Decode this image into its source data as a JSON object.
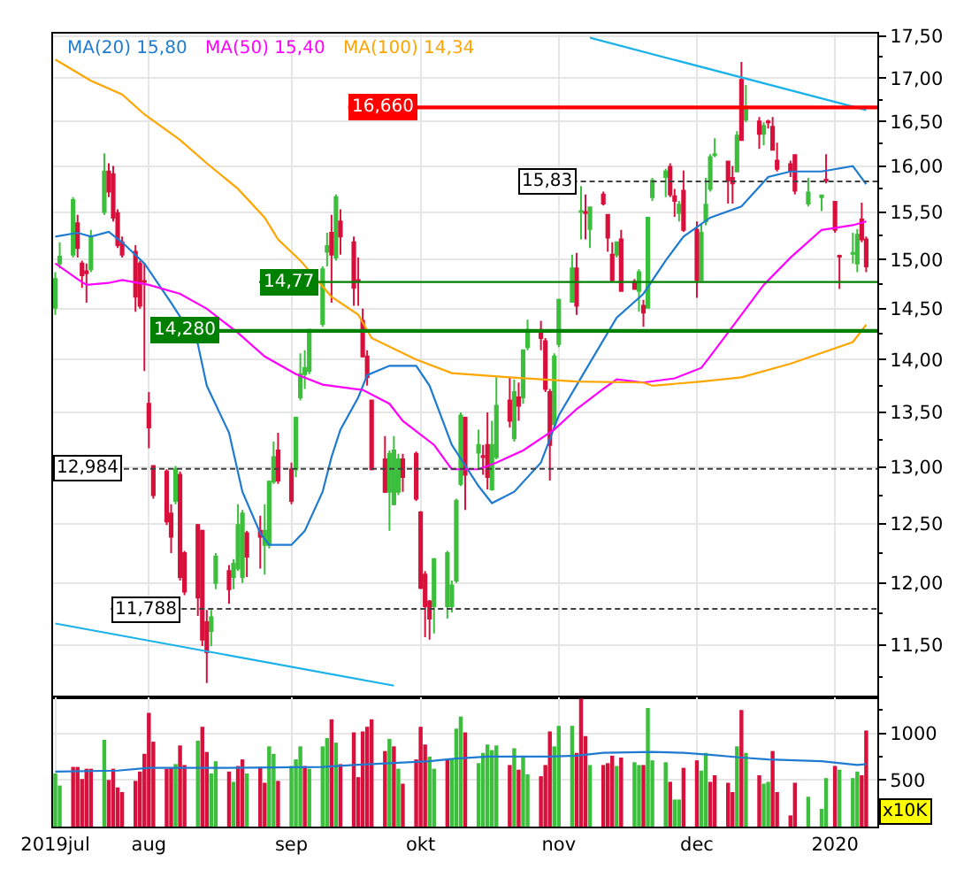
{
  "chart_data": [
    {
      "type": "candlestick",
      "x": [
        "2019-07-11",
        "2019-07-12",
        "2019-07-15",
        "2019-07-16",
        "2019-07-17",
        "2019-07-18",
        "2019-07-19",
        "2019-07-22",
        "2019-07-23",
        "2019-07-24",
        "2019-07-25",
        "2019-07-26",
        "2019-07-29",
        "2019-07-30",
        "2019-07-31",
        "2019-08-01",
        "2019-08-02",
        "2019-08-05",
        "2019-08-06",
        "2019-08-07",
        "2019-08-08",
        "2019-08-09",
        "2019-08-12",
        "2019-08-13",
        "2019-08-14",
        "2019-08-15",
        "2019-08-16",
        "2019-08-19",
        "2019-08-20",
        "2019-08-21",
        "2019-08-22",
        "2019-08-23",
        "2019-08-26",
        "2019-08-27",
        "2019-08-28",
        "2019-08-29",
        "2019-08-30",
        "2019-09-02",
        "2019-09-03",
        "2019-09-04",
        "2019-09-05",
        "2019-09-06",
        "2019-09-09",
        "2019-09-10",
        "2019-09-11",
        "2019-09-12",
        "2019-09-13",
        "2019-09-16",
        "2019-09-17",
        "2019-09-18",
        "2019-09-19",
        "2019-09-20",
        "2019-09-23",
        "2019-09-24",
        "2019-09-25",
        "2019-09-26",
        "2019-09-27",
        "2019-09-30",
        "2019-10-01",
        "2019-10-02",
        "2019-10-03",
        "2019-10-04",
        "2019-10-07",
        "2019-10-08",
        "2019-10-09",
        "2019-10-10",
        "2019-10-11",
        "2019-10-14",
        "2019-10-15",
        "2019-10-16",
        "2019-10-17",
        "2019-10-18",
        "2019-10-21",
        "2019-10-22",
        "2019-10-23",
        "2019-10-24",
        "2019-10-25",
        "2019-10-28",
        "2019-10-29",
        "2019-10-30",
        "2019-10-31",
        "2019-11-01",
        "2019-11-04",
        "2019-11-05",
        "2019-11-06",
        "2019-11-07",
        "2019-11-08",
        "2019-11-11",
        "2019-11-12",
        "2019-11-13",
        "2019-11-14",
        "2019-11-15",
        "2019-11-18",
        "2019-11-19",
        "2019-11-20",
        "2019-11-21",
        "2019-11-22",
        "2019-11-25",
        "2019-11-26",
        "2019-11-27",
        "2019-11-28",
        "2019-11-29",
        "2019-12-02",
        "2019-12-03",
        "2019-12-04",
        "2019-12-05",
        "2019-12-06",
        "2019-12-09",
        "2019-12-10",
        "2019-12-11",
        "2019-12-12",
        "2019-12-13",
        "2019-12-16",
        "2019-12-17",
        "2019-12-18",
        "2019-12-19",
        "2019-12-20",
        "2019-12-23",
        "2019-12-24",
        "2019-12-27",
        "2019-12-30",
        "2019-12-31",
        "2020-01-02",
        "2020-01-03",
        "2020-01-06",
        "2020-01-07",
        "2020-01-08",
        "2020-01-09"
      ],
      "ohlc": [
        [
          14.51,
          14.87,
          14.44,
          14.8
        ],
        [
          14.96,
          15.18,
          14.91,
          15.03
        ],
        [
          15.05,
          15.66,
          15.02,
          15.63
        ],
        [
          15.38,
          15.47,
          15.02,
          15.12
        ],
        [
          14.96,
          14.99,
          14.71,
          14.84
        ],
        [
          14.88,
          14.96,
          14.56,
          14.86
        ],
        [
          14.9,
          15.31,
          14.87,
          15.24
        ],
        [
          15.5,
          16.14,
          15.47,
          15.94
        ],
        [
          15.94,
          16.03,
          15.66,
          15.72
        ],
        [
          15.91,
          16.0,
          15.4,
          15.44
        ],
        [
          15.49,
          15.53,
          15.12,
          15.15
        ],
        [
          15.18,
          15.24,
          15.02,
          15.05
        ],
        [
          15.08,
          15.15,
          14.47,
          14.62
        ],
        [
          14.96,
          14.99,
          14.5,
          14.53
        ],
        [
          14.78,
          14.96,
          13.89,
          14.77
        ],
        [
          13.58,
          13.69,
          13.17,
          13.36
        ],
        [
          13.01,
          13.01,
          12.72,
          12.75
        ],
        [
          12.96,
          12.98,
          12.49,
          12.52
        ],
        [
          12.59,
          12.67,
          12.25,
          12.39
        ],
        [
          12.7,
          13.01,
          12.67,
          12.98
        ],
        [
          12.93,
          12.96,
          12.02,
          12.05
        ],
        [
          12.25,
          12.27,
          11.9,
          11.93
        ],
        [
          12.49,
          12.5,
          11.73,
          11.88
        ],
        [
          12.44,
          12.45,
          11.49,
          11.54
        ],
        [
          11.68,
          11.78,
          11.2,
          11.44
        ],
        [
          11.61,
          11.78,
          11.49,
          11.72
        ],
        [
          12.0,
          12.25,
          11.95,
          12.22
        ],
        [
          12.1,
          12.15,
          11.83,
          11.95
        ],
        [
          12.05,
          12.2,
          11.95,
          12.16
        ],
        [
          12.12,
          12.67,
          12.1,
          12.49
        ],
        [
          12.05,
          12.62,
          12.0,
          12.59
        ],
        [
          12.42,
          12.44,
          12.05,
          12.22
        ],
        [
          12.44,
          12.57,
          12.12,
          12.39
        ],
        [
          12.32,
          12.67,
          12.07,
          12.44
        ],
        [
          12.32,
          12.88,
          12.29,
          12.87
        ],
        [
          12.87,
          13.23,
          12.85,
          13.09
        ],
        [
          13.15,
          13.31,
          12.85,
          12.88
        ],
        [
          12.98,
          13.04,
          12.67,
          12.7
        ],
        [
          12.98,
          13.46,
          12.91,
          13.45
        ],
        [
          13.64,
          14.06,
          13.61,
          13.86
        ],
        [
          13.86,
          14.09,
          13.72,
          13.92
        ],
        [
          13.89,
          14.3,
          13.86,
          14.29
        ],
        [
          14.35,
          14.93,
          14.32,
          14.9
        ],
        [
          15.08,
          15.28,
          14.93,
          15.14
        ],
        [
          15.28,
          15.47,
          14.56,
          15.05
        ],
        [
          15.02,
          15.69,
          14.99,
          15.66
        ],
        [
          15.4,
          15.53,
          15.05,
          15.24
        ],
        [
          15.18,
          15.24,
          14.53,
          14.71
        ],
        [
          14.79,
          15.02,
          14.53,
          14.78
        ],
        [
          14.38,
          14.5,
          14.02,
          14.03
        ],
        [
          14.03,
          14.09,
          13.75,
          13.83
        ],
        [
          13.61,
          13.62,
          12.97,
          12.98
        ],
        [
          13.07,
          13.28,
          12.77,
          12.78
        ],
        [
          12.78,
          13.15,
          12.44,
          13.12
        ],
        [
          12.67,
          13.28,
          12.66,
          13.15
        ],
        [
          12.78,
          13.12,
          12.75,
          13.07
        ],
        [
          13.07,
          13.12,
          12.78,
          12.91
        ],
        [
          13.12,
          13.14,
          12.7,
          12.72
        ],
        [
          12.6,
          12.61,
          11.95,
          11.96
        ],
        [
          12.07,
          12.1,
          11.56,
          11.81
        ],
        [
          11.85,
          11.86,
          11.54,
          11.71
        ],
        [
          11.81,
          12.21,
          11.59,
          12.2
        ],
        [
          11.81,
          12.27,
          11.71,
          12.25
        ],
        [
          11.81,
          12.02,
          11.76,
          11.98
        ],
        [
          12.02,
          12.72,
          12.0,
          12.7
        ],
        [
          12.85,
          13.5,
          12.83,
          13.47
        ],
        [
          13.45,
          13.46,
          12.62,
          12.93
        ],
        [
          13.13,
          13.34,
          12.98,
          13.2
        ],
        [
          13.1,
          13.2,
          12.93,
          13.09
        ],
        [
          13.2,
          13.5,
          12.8,
          12.91
        ],
        [
          12.8,
          13.42,
          12.79,
          13.2
        ],
        [
          13.09,
          13.83,
          13.07,
          13.56
        ],
        [
          13.61,
          13.83,
          13.36,
          13.42
        ],
        [
          13.26,
          13.81,
          13.23,
          13.69
        ],
        [
          13.64,
          13.78,
          13.42,
          13.56
        ],
        [
          13.64,
          14.1,
          13.58,
          14.09
        ],
        [
          14.12,
          14.39,
          14.09,
          14.29
        ],
        [
          14.29,
          14.38,
          14.09,
          14.21
        ],
        [
          14.18,
          14.21,
          13.69,
          13.72
        ],
        [
          13.69,
          13.72,
          12.88,
          13.2
        ],
        [
          13.39,
          14.06,
          13.36,
          14.03
        ],
        [
          14.15,
          14.6,
          14.12,
          14.59
        ],
        [
          14.57,
          15.05,
          14.56,
          14.91
        ],
        [
          14.91,
          15.07,
          14.44,
          14.53
        ],
        [
          15.5,
          15.78,
          15.21,
          15.51
        ],
        [
          15.5,
          15.69,
          15.21,
          15.49
        ],
        [
          15.32,
          15.56,
          15.12,
          15.55
        ],
        [
          15.69,
          15.72,
          15.57,
          15.59
        ],
        [
          15.47,
          15.48,
          15.08,
          15.23
        ],
        [
          15.05,
          15.18,
          14.77,
          14.79
        ],
        [
          15.05,
          15.19,
          15.02,
          15.18
        ],
        [
          15.21,
          15.31,
          14.67,
          14.68
        ],
        [
          14.77,
          14.8,
          14.69,
          14.7
        ],
        [
          14.68,
          14.9,
          14.47,
          14.87
        ],
        [
          14.53,
          14.59,
          14.32,
          14.46
        ],
        [
          14.51,
          15.45,
          14.5,
          15.44
        ],
        [
          15.66,
          15.87,
          15.62,
          15.84
        ],
        [
          15.88,
          15.97,
          15.66,
          15.94
        ],
        [
          15.99,
          16.03,
          15.66,
          15.69
        ],
        [
          15.67,
          15.75,
          15.45,
          15.62
        ],
        [
          15.49,
          15.62,
          15.4,
          15.58
        ],
        [
          15.73,
          15.95,
          15.29,
          15.31
        ],
        [
          15.31,
          15.4,
          14.61,
          14.79
        ],
        [
          14.79,
          15.37,
          14.78,
          15.28
        ],
        [
          15.4,
          15.87,
          15.36,
          15.58
        ],
        [
          15.75,
          16.13,
          15.72,
          16.1
        ],
        [
          16.12,
          16.31,
          16.1,
          16.13
        ],
        [
          16.05,
          16.06,
          15.59,
          15.84
        ],
        [
          15.87,
          16.0,
          15.59,
          15.81
        ],
        [
          15.94,
          16.39,
          15.93,
          16.34
        ],
        [
          16.98,
          17.19,
          16.28,
          16.29
        ],
        [
          16.52,
          16.92,
          16.49,
          16.65
        ],
        [
          16.5,
          16.55,
          16.19,
          16.36
        ],
        [
          16.36,
          16.49,
          16.23,
          16.45
        ],
        [
          16.5,
          16.52,
          16.42,
          16.49
        ],
        [
          16.44,
          16.55,
          16.17,
          16.18
        ],
        [
          16.06,
          16.26,
          15.94,
          15.97
        ],
        [
          16.02,
          16.06,
          15.88,
          15.95
        ],
        [
          16.12,
          16.13,
          15.69,
          15.73
        ],
        [
          15.59,
          15.87,
          15.56,
          15.71
        ],
        [
          15.66,
          15.69,
          15.51,
          15.68
        ],
        [
          15.85,
          16.13,
          15.81,
          15.84
        ],
        [
          15.61,
          15.62,
          15.28,
          15.31
        ],
        [
          15.04,
          15.05,
          14.7,
          15.03
        ],
        [
          15.06,
          15.28,
          14.96,
          15.07
        ],
        [
          14.96,
          15.32,
          14.87,
          15.26
        ],
        [
          15.42,
          15.6,
          15.18,
          15.21
        ],
        [
          15.21,
          15.24,
          14.87,
          14.93
        ]
      ],
      "colors": [
        "#3cbf3c",
        "#3cbf3c",
        "#3cbf3c",
        "#d8103c",
        "#d8103c",
        "#d8103c",
        "#3cbf3c",
        "#3cbf3c",
        "#d8103c",
        "#d8103c",
        "#d8103c",
        "#d8103c",
        "#d8103c",
        "#d8103c",
        "#d8103c",
        "#d8103c",
        "#d8103c",
        "#d8103c",
        "#d8103c",
        "#3cbf3c",
        "#d8103c",
        "#d8103c",
        "#d8103c",
        "#d8103c",
        "#d8103c",
        "#3cbf3c",
        "#3cbf3c",
        "#d8103c",
        "#3cbf3c",
        "#3cbf3c",
        "#3cbf3c",
        "#d8103c",
        "#d8103c",
        "#3cbf3c",
        "#3cbf3c",
        "#3cbf3c",
        "#d8103c",
        "#d8103c",
        "#3cbf3c",
        "#3cbf3c",
        "#3cbf3c",
        "#3cbf3c",
        "#3cbf3c",
        "#3cbf3c",
        "#d8103c",
        "#3cbf3c",
        "#d8103c",
        "#d8103c",
        "#d8103c",
        "#d8103c",
        "#d8103c",
        "#d8103c",
        "#d8103c",
        "#3cbf3c",
        "#3cbf3c",
        "#3cbf3c",
        "#d8103c",
        "#d8103c",
        "#d8103c",
        "#d8103c",
        "#d8103c",
        "#3cbf3c",
        "#3cbf3c",
        "#3cbf3c",
        "#3cbf3c",
        "#3cbf3c",
        "#d8103c",
        "#3cbf3c",
        "#d8103c",
        "#d8103c",
        "#3cbf3c",
        "#3cbf3c",
        "#d8103c",
        "#3cbf3c",
        "#d8103c",
        "#3cbf3c",
        "#3cbf3c",
        "#d8103c",
        "#d8103c",
        "#d8103c",
        "#3cbf3c",
        "#3cbf3c",
        "#3cbf3c",
        "#d8103c",
        "#3cbf3c",
        "#d8103c",
        "#3cbf3c",
        "#d8103c",
        "#d8103c",
        "#d8103c",
        "#3cbf3c",
        "#d8103c",
        "#d8103c",
        "#3cbf3c",
        "#d8103c",
        "#3cbf3c",
        "#3cbf3c",
        "#3cbf3c",
        "#d8103c",
        "#d8103c",
        "#3cbf3c",
        "#d8103c",
        "#d8103c",
        "#3cbf3c",
        "#3cbf3c",
        "#3cbf3c",
        "#3cbf3c",
        "#d8103c",
        "#d8103c",
        "#3cbf3c",
        "#d8103c",
        "#3cbf3c",
        "#d8103c",
        "#3cbf3c",
        "#d8103c",
        "#d8103c",
        "#d8103c",
        "#d8103c",
        "#d8103c",
        "#3cbf3c",
        "#3cbf3c",
        "#d8103c",
        "#d8103c",
        "#d8103c",
        "#3cbf3c",
        "#3cbf3c",
        "#d8103c",
        "#d8103c"
      ],
      "series": [
        {
          "type": "line",
          "name": "MA(20) 15,80",
          "color": "#1e7bd1",
          "x": [
            "2019-07-11",
            "2019-07-16",
            "2019-07-19",
            "2019-07-23",
            "2019-07-26",
            "2019-07-31",
            "2019-08-06",
            "2019-08-12",
            "2019-08-14",
            "2019-08-19",
            "2019-08-22",
            "2019-08-26",
            "2019-08-28",
            "2019-09-02",
            "2019-09-05",
            "2019-09-09",
            "2019-09-11",
            "2019-09-13",
            "2019-09-17",
            "2019-09-19",
            "2019-09-24",
            "2019-09-30",
            "2019-10-03",
            "2019-10-08",
            "2019-10-14",
            "2019-10-17",
            "2019-10-22",
            "2019-10-28",
            "2019-11-01",
            "2019-11-08",
            "2019-11-14",
            "2019-11-20",
            "2019-11-25",
            "2019-11-29",
            "2019-12-05",
            "2019-12-12",
            "2019-12-18",
            "2019-12-23",
            "2019-12-30",
            "2020-01-06",
            "2020-01-09"
          ],
          "values": [
            15.24,
            15.28,
            15.24,
            15.29,
            15.18,
            14.96,
            14.56,
            14.15,
            13.75,
            13.31,
            12.78,
            12.42,
            12.32,
            12.32,
            12.44,
            12.78,
            13.09,
            13.34,
            13.64,
            13.85,
            13.94,
            13.94,
            13.75,
            13.2,
            12.83,
            12.68,
            12.78,
            13.04,
            13.47,
            13.97,
            14.41,
            14.65,
            14.99,
            15.24,
            15.44,
            15.56,
            15.88,
            15.94,
            15.94,
            16.0,
            15.8
          ]
        },
        {
          "type": "line",
          "name": "MA(50) 15,40",
          "color": "#ff00ff",
          "x": [
            "2019-07-11",
            "2019-07-16",
            "2019-07-18",
            "2019-07-23",
            "2019-07-26",
            "2019-08-01",
            "2019-08-08",
            "2019-08-14",
            "2019-08-21",
            "2019-08-27",
            "2019-09-03",
            "2019-09-09",
            "2019-09-16",
            "2019-09-18",
            "2019-09-24",
            "2019-09-27",
            "2019-10-04",
            "2019-10-08",
            "2019-10-14",
            "2019-10-18",
            "2019-10-24",
            "2019-10-31",
            "2019-11-05",
            "2019-11-11",
            "2019-11-14",
            "2019-11-20",
            "2019-11-27",
            "2019-12-03",
            "2019-12-06",
            "2019-12-12",
            "2019-12-17",
            "2019-12-23",
            "2019-12-30",
            "2020-01-06",
            "2020-01-09"
          ],
          "values": [
            14.96,
            14.8,
            14.74,
            14.76,
            14.79,
            14.74,
            14.65,
            14.5,
            14.26,
            14.03,
            13.86,
            13.76,
            13.72,
            13.71,
            13.58,
            13.42,
            13.2,
            12.98,
            12.98,
            13.04,
            13.15,
            13.34,
            13.53,
            13.72,
            13.81,
            13.78,
            13.82,
            13.92,
            14.09,
            14.44,
            14.74,
            15.02,
            15.31,
            15.36,
            15.4
          ]
        },
        {
          "type": "line",
          "name": "MA(100) 14,34",
          "color": "#ffa500",
          "x": [
            "2019-07-11",
            "2019-07-19",
            "2019-07-26",
            "2019-07-31",
            "2019-08-08",
            "2019-08-14",
            "2019-08-21",
            "2019-08-27",
            "2019-08-30",
            "2019-09-04",
            "2019-09-11",
            "2019-09-17",
            "2019-09-20",
            "2019-09-30",
            "2019-10-08",
            "2019-10-21",
            "2019-11-05",
            "2019-11-20",
            "2019-11-22",
            "2019-12-03",
            "2019-12-12",
            "2019-12-23",
            "2020-01-06",
            "2020-01-09"
          ],
          "values": [
            17.22,
            16.97,
            16.81,
            16.58,
            16.29,
            16.03,
            15.75,
            15.44,
            15.21,
            14.99,
            14.62,
            14.44,
            14.21,
            14.0,
            13.87,
            13.83,
            13.79,
            13.78,
            13.75,
            13.79,
            13.83,
            13.96,
            14.17,
            14.34
          ]
        },
        {
          "type": "line",
          "color": "#1ab2ea",
          "x": [
            "2019-07-11",
            "2019-09-25"
          ],
          "values": [
            11.67,
            11.18
          ]
        },
        {
          "type": "line",
          "color": "#1ab2ea",
          "x": [
            "2019-11-08",
            "2020-01-09"
          ],
          "values": [
            17.48,
            16.63
          ]
        }
      ],
      "ref_lines": [
        {
          "axis": "y",
          "value": 16.66,
          "label": "16,660",
          "color": "#ff0000"
        },
        {
          "axis": "y",
          "value": 14.28,
          "label": "14,280",
          "color": "#008000"
        },
        {
          "axis": "y",
          "value": 14.77,
          "label": "14,77",
          "color": "#008000"
        },
        {
          "axis": "y",
          "value": 15.83,
          "label": "15,83",
          "color": "#404040",
          "line_style": "dashed"
        },
        {
          "axis": "y",
          "value": 12.984,
          "label": "12,984",
          "color": "#404040",
          "line_style": "dashed"
        },
        {
          "axis": "y",
          "value": 11.788,
          "label": "11,788",
          "color": "#404040",
          "line_style": "dashed"
        }
      ],
      "xlim": [
        "2019-07-10T12:00",
        "2020-01-11T12:00"
      ],
      "xticks": [
        {
          "value": "2019-08-01",
          "label": null
        },
        {
          "value": "2019-09-02",
          "label": null
        },
        {
          "value": "2019-10-01",
          "label": null
        },
        {
          "value": "2019-11-01",
          "label": null
        },
        {
          "value": "2019-12-02",
          "label": null
        },
        {
          "value": "2020-01-02",
          "label": null
        }
      ],
      "ylim": [
        11.09,
        17.53
      ],
      "yticks": [
        {
          "value": 11.25,
          "label": null
        },
        {
          "value": 11.5,
          "label": "11,50"
        },
        {
          "value": 11.75,
          "label": null
        },
        {
          "value": 12,
          "label": "12,00"
        },
        {
          "value": 12.25,
          "label": null
        },
        {
          "value": 12.5,
          "label": "12,50"
        },
        {
          "value": 12.75,
          "label": null
        },
        {
          "value": 13,
          "label": "13,00"
        },
        {
          "value": 13.25,
          "label": null
        },
        {
          "value": 13.5,
          "label": "13,50"
        },
        {
          "value": 13.75,
          "label": null
        },
        {
          "value": 14,
          "label": "14,00"
        },
        {
          "value": 14.25,
          "label": null
        },
        {
          "value": 14.5,
          "label": "14,50"
        },
        {
          "value": 14.75,
          "label": null
        },
        {
          "value": 15,
          "label": "15,00"
        },
        {
          "value": 15.25,
          "label": null
        },
        {
          "value": 15.5,
          "label": "15,50"
        },
        {
          "value": 15.75,
          "label": null
        },
        {
          "value": 16,
          "label": "16,00"
        },
        {
          "value": 16.25,
          "label": null
        },
        {
          "value": 16.5,
          "label": "16,50"
        },
        {
          "value": 16.75,
          "label": null
        },
        {
          "value": 17,
          "label": "17,00"
        },
        {
          "value": 17.25,
          "label": null
        },
        {
          "value": 17.5,
          "label": "17,50"
        }
      ],
      "log": "y",
      "grid": true,
      "legend": "top left",
      "tick_labels": "y"
    },
    {
      "type": "bar",
      "x": [
        "2019-07-11",
        "2019-07-12",
        "2019-07-15",
        "2019-07-16",
        "2019-07-17",
        "2019-07-18",
        "2019-07-19",
        "2019-07-22",
        "2019-07-23",
        "2019-07-24",
        "2019-07-25",
        "2019-07-26",
        "2019-07-29",
        "2019-07-30",
        "2019-07-31",
        "2019-08-01",
        "2019-08-02",
        "2019-08-05",
        "2019-08-06",
        "2019-08-07",
        "2019-08-08",
        "2019-08-09",
        "2019-08-12",
        "2019-08-13",
        "2019-08-14",
        "2019-08-15",
        "2019-08-16",
        "2019-08-19",
        "2019-08-20",
        "2019-08-21",
        "2019-08-22",
        "2019-08-23",
        "2019-08-26",
        "2019-08-27",
        "2019-08-28",
        "2019-08-29",
        "2019-08-30",
        "2019-09-02",
        "2019-09-03",
        "2019-09-04",
        "2019-09-05",
        "2019-09-06",
        "2019-09-09",
        "2019-09-10",
        "2019-09-11",
        "2019-09-12",
        "2019-09-13",
        "2019-09-16",
        "2019-09-17",
        "2019-09-18",
        "2019-09-19",
        "2019-09-20",
        "2019-09-23",
        "2019-09-24",
        "2019-09-25",
        "2019-09-26",
        "2019-09-27",
        "2019-09-30",
        "2019-10-01",
        "2019-10-02",
        "2019-10-03",
        "2019-10-04",
        "2019-10-07",
        "2019-10-08",
        "2019-10-09",
        "2019-10-10",
        "2019-10-11",
        "2019-10-14",
        "2019-10-15",
        "2019-10-16",
        "2019-10-17",
        "2019-10-18",
        "2019-10-21",
        "2019-10-22",
        "2019-10-23",
        "2019-10-24",
        "2019-10-25",
        "2019-10-28",
        "2019-10-29",
        "2019-10-30",
        "2019-10-31",
        "2019-11-01",
        "2019-11-04",
        "2019-11-05",
        "2019-11-06",
        "2019-11-07",
        "2019-11-08",
        "2019-11-11",
        "2019-11-12",
        "2019-11-13",
        "2019-11-14",
        "2019-11-15",
        "2019-11-18",
        "2019-11-19",
        "2019-11-20",
        "2019-11-21",
        "2019-11-22",
        "2019-11-25",
        "2019-11-26",
        "2019-11-27",
        "2019-11-28",
        "2019-11-29",
        "2019-12-02",
        "2019-12-03",
        "2019-12-04",
        "2019-12-05",
        "2019-12-06",
        "2019-12-09",
        "2019-12-10",
        "2019-12-11",
        "2019-12-12",
        "2019-12-13",
        "2019-12-16",
        "2019-12-17",
        "2019-12-18",
        "2019-12-19",
        "2019-12-20",
        "2019-12-23",
        "2019-12-24",
        "2019-12-27",
        "2019-12-30",
        "2019-12-31",
        "2020-01-02",
        "2020-01-03",
        "2020-01-06",
        "2020-01-07",
        "2020-01-08",
        "2020-01-09"
      ],
      "series": [
        {
          "values": [
            570,
            440,
            640,
            640,
            510,
            620,
            620,
            930,
            500,
            620,
            420,
            370,
            490,
            590,
            780,
            1220,
            910,
            620,
            630,
            670,
            870,
            660,
            920,
            1070,
            800,
            570,
            700,
            590,
            480,
            650,
            720,
            570,
            640,
            470,
            860,
            780,
            490,
            650,
            720,
            860,
            650,
            620,
            860,
            950,
            1150,
            900,
            670,
            1010,
            530,
            1020,
            1070,
            1150,
            810,
            940,
            860,
            620,
            460,
            720,
            1070,
            880,
            750,
            620,
            720,
            720,
            1050,
            1180,
            1010,
            680,
            790,
            880,
            820,
            870,
            660,
            840,
            610,
            760,
            560,
            540,
            660,
            1020,
            860,
            1080,
            1080,
            790,
            1370,
            970,
            660,
            660,
            680,
            760,
            650,
            740,
            690,
            660,
            660,
            1270,
            710,
            690,
            480,
            290,
            290,
            630,
            710,
            600,
            790,
            480,
            550,
            470,
            370,
            860,
            1250,
            790,
            550,
            460,
            480,
            810,
            370,
            120,
            470,
            320,
            190,
            520,
            650,
            610,
            520,
            590,
            550,
            1030
          ],
          "colors": [
            "#3cbf3c",
            "#3cbf3c",
            "#d8103c",
            "#d8103c",
            "#d8103c",
            "#d8103c",
            "#d8103c",
            "#3cbf3c",
            "#d8103c",
            "#d8103c",
            "#d8103c",
            "#d8103c",
            "#d8103c",
            "#d8103c",
            "#d8103c",
            "#d8103c",
            "#d8103c",
            "#d8103c",
            "#d8103c",
            "#3cbf3c",
            "#d8103c",
            "#d8103c",
            "#3cbf3c",
            "#d8103c",
            "#d8103c",
            "#3cbf3c",
            "#3cbf3c",
            "#d8103c",
            "#3cbf3c",
            "#d8103c",
            "#d8103c",
            "#3cbf3c",
            "#d8103c",
            "#d8103c",
            "#3cbf3c",
            "#3cbf3c",
            "#d8103c",
            "#3cbf3c",
            "#3cbf3c",
            "#3cbf3c",
            "#d8103c",
            "#3cbf3c",
            "#3cbf3c",
            "#3cbf3c",
            "#d8103c",
            "#3cbf3c",
            "#d8103c",
            "#d8103c",
            "#d8103c",
            "#d8103c",
            "#d8103c",
            "#d8103c",
            "#d8103c",
            "#3cbf3c",
            "#d8103c",
            "#3cbf3c",
            "#d8103c",
            "#d8103c",
            "#d8103c",
            "#d8103c",
            "#3cbf3c",
            "#3cbf3c",
            "#d8103c",
            "#3cbf3c",
            "#3cbf3c",
            "#3cbf3c",
            "#d8103c",
            "#3cbf3c",
            "#3cbf3c",
            "#3cbf3c",
            "#3cbf3c",
            "#3cbf3c",
            "#d8103c",
            "#3cbf3c",
            "#d8103c",
            "#3cbf3c",
            "#3cbf3c",
            "#d8103c",
            "#d8103c",
            "#d8103c",
            "#3cbf3c",
            "#3cbf3c",
            "#3cbf3c",
            "#d8103c",
            "#d8103c",
            "#d8103c",
            "#3cbf3c",
            "#d8103c",
            "#d8103c",
            "#d8103c",
            "#3cbf3c",
            "#d8103c",
            "#3cbf3c",
            "#3cbf3c",
            "#d8103c",
            "#3cbf3c",
            "#3cbf3c",
            "#3cbf3c",
            "#d8103c",
            "#3cbf3c",
            "#3cbf3c",
            "#d8103c",
            "#d8103c",
            "#3cbf3c",
            "#3cbf3c",
            "#d8103c",
            "#d8103c",
            "#d8103c",
            "#d8103c",
            "#3cbf3c",
            "#d8103c",
            "#3cbf3c",
            "#d8103c",
            "#3cbf3c",
            "#3cbf3c",
            "#d8103c",
            "#d8103c",
            "#d8103c",
            "#d8103c",
            "#3cbf3c",
            "#3cbf3c",
            "#3cbf3c",
            "#d8103c",
            "#3cbf3c",
            "#3cbf3c",
            "#3cbf3c",
            "#d8103c",
            "#d8103c"
          ]
        },
        {
          "type": "line",
          "color": "#1e7bd1",
          "x": [
            "2019-07-11",
            "2019-07-25",
            "2019-08-01",
            "2019-08-19",
            "2019-09-09",
            "2019-09-16",
            "2019-09-24",
            "2019-10-03",
            "2019-10-09",
            "2019-10-16",
            "2019-10-30",
            "2019-11-05",
            "2019-11-11",
            "2019-11-22",
            "2019-11-29",
            "2019-12-05",
            "2019-12-12",
            "2019-12-18",
            "2019-12-30",
            "2020-01-07",
            "2020-01-09"
          ],
          "values": [
            590,
            600,
            630,
            630,
            640,
            660,
            680,
            700,
            730,
            750,
            750,
            760,
            790,
            800,
            790,
            770,
            740,
            720,
            700,
            660,
            670
          ]
        }
      ],
      "xlim": [
        "2019-07-10T12:00",
        "2020-01-11T12:00"
      ],
      "xticks": [
        {
          "value": "2019-07-11",
          "label": "2019jul"
        },
        {
          "value": "2019-08-01",
          "label": "aug"
        },
        {
          "value": "2019-09-02",
          "label": "sep"
        },
        {
          "value": "2019-10-01",
          "label": "okt"
        },
        {
          "value": "2019-11-01",
          "label": "nov"
        },
        {
          "value": "2019-12-02",
          "label": "dec"
        },
        {
          "value": "2020-01-02",
          "label": "2020"
        }
      ],
      "ylim": [
        0,
        1385
      ],
      "yticks": [
        {
          "value": 250,
          "label": null
        },
        500,
        {
          "value": 750,
          "label": null
        },
        1000,
        {
          "value": 1250,
          "label": null
        }
      ],
      "ylabel": "x10K",
      "grid": true
    }
  ]
}
